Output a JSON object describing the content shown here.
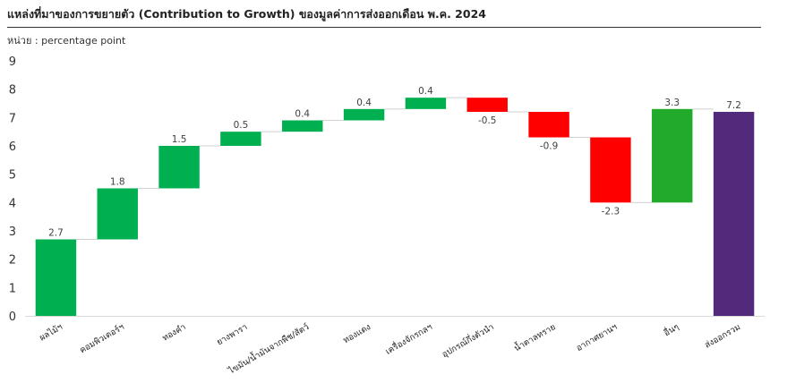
{
  "header": {
    "title": "แหล่งที่มาของการขยายตัว (Contribution to Growth) ของมูลค่าการส่งออกเดือน พ.ค. 2024",
    "unit": "หน่วย : percentage point"
  },
  "colors": {
    "increase": "#00B050",
    "decrease": "#FF0000",
    "last_increase": "#22AA2A",
    "total": "#512A7C",
    "connector": "#D0D0D0"
  },
  "chart_data": {
    "type": "waterfall",
    "title": "แหล่งที่มาของการขยายตัว (Contribution to Growth) ของมูลค่าการส่งออกเดือน พ.ค. 2024",
    "ylabel": "หน่วย : percentage point",
    "ylim": [
      0,
      9
    ],
    "yticks": [
      0,
      1,
      2,
      3,
      4,
      5,
      6,
      7,
      8,
      9
    ],
    "grid": false,
    "legend": "none",
    "categories": [
      "ผลไม้ฯ",
      "คอมพิวเตอร์ฯ",
      "ทองคำ",
      "ยางพารา",
      "ไขมัน/น้ำมันจากพืช/สัตว์",
      "ทองแดง",
      "เครื่องจักรกลฯ",
      "อุปกรณ์กึ่งตัวนำ",
      "น้ำตาลทราย",
      "อากาศยานฯ",
      "อื่นๆ",
      "ส่งออกรวม"
    ],
    "values": [
      2.7,
      1.8,
      1.5,
      0.5,
      0.4,
      0.4,
      0.4,
      -0.5,
      -0.9,
      -2.3,
      3.3,
      7.2
    ],
    "labels": [
      "2.7",
      "1.8",
      "1.5",
      "0.5",
      "0.4",
      "0.4",
      "0.4",
      "-0.5",
      "-0.9",
      "-2.3",
      "3.3",
      "7.2"
    ],
    "is_total": [
      false,
      false,
      false,
      false,
      false,
      false,
      false,
      false,
      false,
      false,
      false,
      true
    ]
  }
}
